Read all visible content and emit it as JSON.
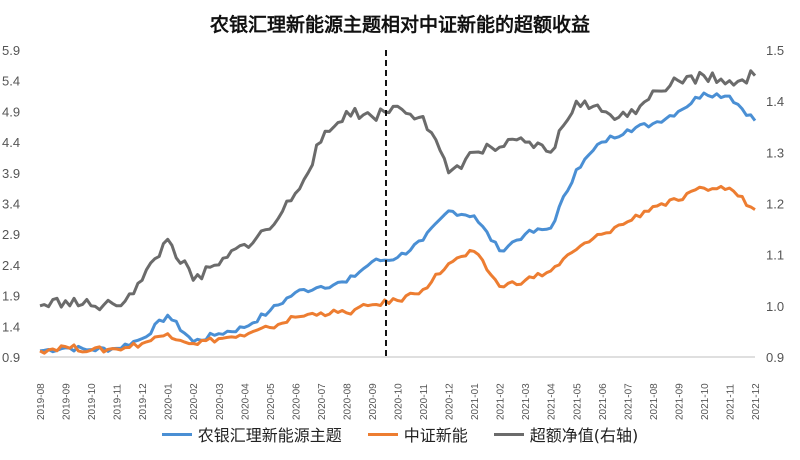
{
  "chart_data": {
    "type": "line",
    "title": "农银汇理新能源主题相对中证新能的超额收益",
    "y_left": {
      "min": 0.9,
      "max": 5.9,
      "ticks": [
        "0.9",
        "1.4",
        "1.9",
        "2.4",
        "2.9",
        "3.4",
        "3.9",
        "4.4",
        "4.9",
        "5.4",
        "5.9"
      ]
    },
    "y_right": {
      "min": 0.9,
      "max": 1.5,
      "ticks": [
        "0.9",
        "1.0",
        "1.1",
        "1.2",
        "1.3",
        "1.4",
        "1.5"
      ]
    },
    "x_ticks": [
      "2019-08",
      "2019-09",
      "2019-10",
      "2019-11",
      "2019-12",
      "2020-01",
      "2020-02",
      "2020-03",
      "2020-04",
      "2020-05",
      "2020-06",
      "2020-07",
      "2020-08",
      "2020-09",
      "2020-10",
      "2020-11",
      "2020-12",
      "2021-01",
      "2021-02",
      "2021-03",
      "2021-04",
      "2021-05",
      "2021-06",
      "2021-07",
      "2021-08",
      "2021-09",
      "2021-10",
      "2021-11",
      "2021-12"
    ],
    "divider_x": "2020-09",
    "grid": false,
    "legend_position": "bottom",
    "series": [
      {
        "name": "农银汇理新能源主题",
        "axis": "left",
        "color": "#4a8fd4",
        "values": [
          1.0,
          1.05,
          1.02,
          1.04,
          1.2,
          1.58,
          1.15,
          1.28,
          1.38,
          1.65,
          1.95,
          2.05,
          2.12,
          2.45,
          2.52,
          2.8,
          3.28,
          3.2,
          2.63,
          2.9,
          3.0,
          3.95,
          4.4,
          4.6,
          4.7,
          4.9,
          5.2,
          5.15,
          4.75
        ]
      },
      {
        "name": "中证新能",
        "axis": "left",
        "color": "#ed7d31",
        "values": [
          1.0,
          1.07,
          1.01,
          1.03,
          1.12,
          1.28,
          1.12,
          1.2,
          1.24,
          1.38,
          1.55,
          1.62,
          1.62,
          1.75,
          1.82,
          2.0,
          2.42,
          2.62,
          2.05,
          2.15,
          2.3,
          2.65,
          2.9,
          3.1,
          3.35,
          3.45,
          3.65,
          3.65,
          3.3
        ]
      },
      {
        "name": "超额净值(右轴)",
        "axis": "right",
        "color": "#6b6b6b",
        "values": [
          1.0,
          1.01,
          1.0,
          1.0,
          1.05,
          1.13,
          1.05,
          1.08,
          1.12,
          1.15,
          1.22,
          1.32,
          1.38,
          1.37,
          1.39,
          1.37,
          1.26,
          1.3,
          1.31,
          1.32,
          1.3,
          1.4,
          1.38,
          1.37,
          1.42,
          1.44,
          1.45,
          1.44,
          1.45
        ]
      }
    ]
  }
}
